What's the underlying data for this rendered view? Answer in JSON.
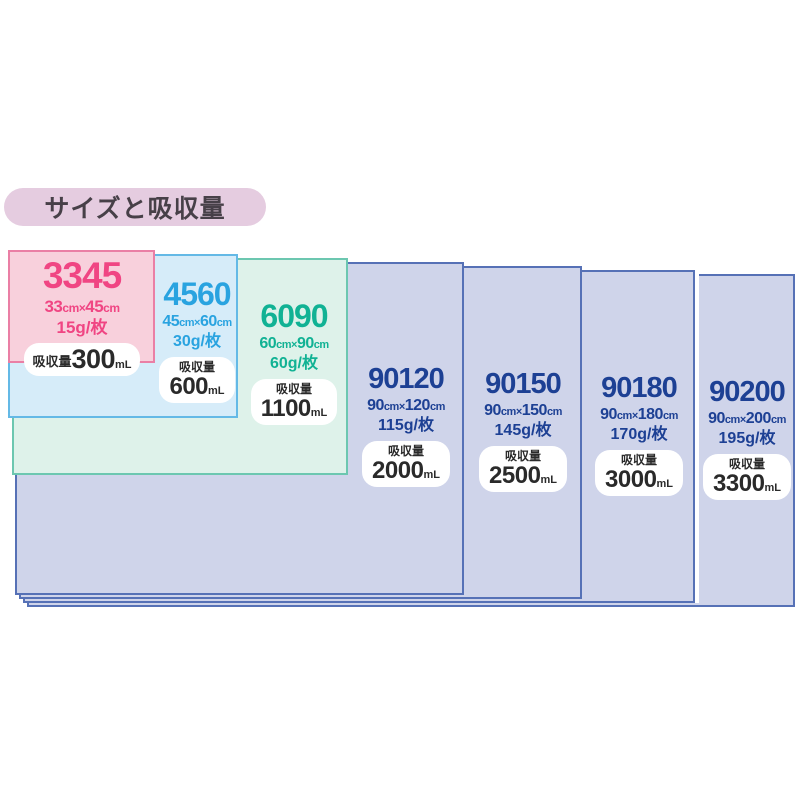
{
  "title": {
    "label": "サイズと吸収量"
  },
  "colors": {
    "background": "#ffffff",
    "title_pill_bg": "#e5cce0",
    "title_text": "#474048",
    "pill_bg": "#ffffff",
    "pill_text": "#2a2a2a"
  },
  "sheets": [
    {
      "code": "3345",
      "size": "33cm×45cm",
      "weight": "15g/枚",
      "absorb_label": "吸収量",
      "absorb_value": "300",
      "absorb_unit": "mL",
      "colors": {
        "heading": "#f04583",
        "fill": "#f8d0dc",
        "border": "#ea7fa5"
      }
    },
    {
      "code": "4560",
      "size": "45cm×60cm",
      "weight": "30g/枚",
      "absorb_label": "吸収量",
      "absorb_value": "600",
      "absorb_unit": "mL",
      "colors": {
        "heading": "#29a3e0",
        "fill": "#d6ecf9",
        "border": "#64b9e6"
      }
    },
    {
      "code": "6090",
      "size": "60cm×90cm",
      "weight": "60g/枚",
      "absorb_label": "吸収量",
      "absorb_value": "1100",
      "absorb_unit": "mL",
      "colors": {
        "heading": "#11b294",
        "fill": "#def2ea",
        "border": "#6cc7b0"
      }
    },
    {
      "code": "90120",
      "size": "90cm×120cm",
      "weight": "115g/枚",
      "absorb_label": "吸収量",
      "absorb_value": "2000",
      "absorb_unit": "mL",
      "colors": {
        "heading": "#1d4094",
        "fill": "#cfd4ea",
        "border": "#5671b6"
      }
    },
    {
      "code": "90150",
      "size": "90cm×150cm",
      "weight": "145g/枚",
      "absorb_label": "吸収量",
      "absorb_value": "2500",
      "absorb_unit": "mL",
      "colors": {
        "heading": "#1d4094",
        "fill": "#cfd4ea",
        "border": "#5671b6"
      }
    },
    {
      "code": "90180",
      "size": "90cm×180cm",
      "weight": "170g/枚",
      "absorb_label": "吸収量",
      "absorb_value": "3000",
      "absorb_unit": "mL",
      "colors": {
        "heading": "#1d4094",
        "fill": "#cfd4ea",
        "border": "#5671b6"
      }
    },
    {
      "code": "90200",
      "size": "90cm×200cm",
      "weight": "195g/枚",
      "absorb_label": "吸収量",
      "absorb_value": "3300",
      "absorb_unit": "mL",
      "colors": {
        "heading": "#1d4094",
        "fill": "#cfd4ea",
        "border": "#5671b6"
      }
    }
  ]
}
